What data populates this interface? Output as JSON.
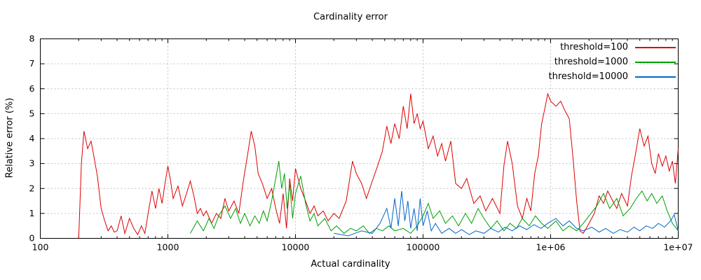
{
  "chart_data": {
    "type": "line",
    "title": "Cardinality error",
    "xlabel": "Actual cardinality",
    "ylabel": "Relative error (%)",
    "x_scale": "log10",
    "xlim": [
      100,
      10000000
    ],
    "ylim": [
      0,
      8
    ],
    "grid": true,
    "grid_color": "#c0c0c0",
    "legend_position": "top-right-inside",
    "xtick_labels": [
      "100",
      "1000",
      "10000",
      "100000",
      "1e+06",
      "1e+07"
    ],
    "ytick_labels": [
      "0",
      "1",
      "2",
      "3",
      "4",
      "5",
      "6",
      "7",
      "8"
    ],
    "series": [
      {
        "name": "threshold=100",
        "color": "#dd0000",
        "points": [
          [
            200,
            0.0
          ],
          [
            210,
            3.0
          ],
          [
            220,
            4.3
          ],
          [
            235,
            3.6
          ],
          [
            250,
            3.9
          ],
          [
            265,
            3.2
          ],
          [
            280,
            2.5
          ],
          [
            300,
            1.2
          ],
          [
            320,
            0.7
          ],
          [
            340,
            0.3
          ],
          [
            360,
            0.5
          ],
          [
            380,
            0.25
          ],
          [
            400,
            0.3
          ],
          [
            430,
            0.9
          ],
          [
            460,
            0.2
          ],
          [
            500,
            0.8
          ],
          [
            540,
            0.4
          ],
          [
            580,
            0.15
          ],
          [
            620,
            0.5
          ],
          [
            660,
            0.2
          ],
          [
            700,
            1.0
          ],
          [
            750,
            1.9
          ],
          [
            800,
            1.2
          ],
          [
            850,
            2.0
          ],
          [
            900,
            1.4
          ],
          [
            950,
            2.2
          ],
          [
            1000,
            2.9
          ],
          [
            1050,
            2.3
          ],
          [
            1100,
            1.6
          ],
          [
            1200,
            2.1
          ],
          [
            1300,
            1.3
          ],
          [
            1400,
            1.8
          ],
          [
            1500,
            2.3
          ],
          [
            1600,
            1.7
          ],
          [
            1700,
            1.0
          ],
          [
            1800,
            1.2
          ],
          [
            1900,
            0.9
          ],
          [
            2000,
            1.1
          ],
          [
            2200,
            0.6
          ],
          [
            2400,
            1.0
          ],
          [
            2600,
            0.8
          ],
          [
            2800,
            1.6
          ],
          [
            3000,
            1.1
          ],
          [
            3300,
            1.5
          ],
          [
            3600,
            1.0
          ],
          [
            3900,
            2.3
          ],
          [
            4200,
            3.3
          ],
          [
            4500,
            4.3
          ],
          [
            4800,
            3.7
          ],
          [
            5100,
            2.6
          ],
          [
            5500,
            2.2
          ],
          [
            6000,
            1.6
          ],
          [
            6500,
            2.0
          ],
          [
            7000,
            1.2
          ],
          [
            7500,
            0.6
          ],
          [
            8000,
            1.8
          ],
          [
            8500,
            0.4
          ],
          [
            9000,
            2.4
          ],
          [
            9500,
            1.5
          ],
          [
            10000,
            2.8
          ],
          [
            11000,
            2.0
          ],
          [
            12000,
            1.5
          ],
          [
            13000,
            1.0
          ],
          [
            14000,
            1.3
          ],
          [
            15000,
            0.9
          ],
          [
            16500,
            1.1
          ],
          [
            18000,
            0.7
          ],
          [
            20000,
            1.0
          ],
          [
            22000,
            0.8
          ],
          [
            25000,
            1.5
          ],
          [
            28000,
            3.1
          ],
          [
            30000,
            2.6
          ],
          [
            33000,
            2.2
          ],
          [
            36000,
            1.6
          ],
          [
            40000,
            2.3
          ],
          [
            44000,
            2.9
          ],
          [
            48000,
            3.5
          ],
          [
            52000,
            4.5
          ],
          [
            56000,
            3.8
          ],
          [
            60000,
            4.6
          ],
          [
            65000,
            4.0
          ],
          [
            70000,
            5.3
          ],
          [
            75000,
            4.4
          ],
          [
            80000,
            5.8
          ],
          [
            85000,
            4.6
          ],
          [
            90000,
            5.0
          ],
          [
            95000,
            4.4
          ],
          [
            100000,
            4.7
          ],
          [
            110000,
            3.6
          ],
          [
            120000,
            4.1
          ],
          [
            130000,
            3.3
          ],
          [
            140000,
            3.8
          ],
          [
            150000,
            3.1
          ],
          [
            165000,
            3.9
          ],
          [
            180000,
            2.2
          ],
          [
            200000,
            2.0
          ],
          [
            220000,
            2.4
          ],
          [
            250000,
            1.4
          ],
          [
            280000,
            1.7
          ],
          [
            310000,
            1.1
          ],
          [
            350000,
            1.6
          ],
          [
            400000,
            1.0
          ],
          [
            430000,
            2.9
          ],
          [
            460000,
            3.9
          ],
          [
            500000,
            3.0
          ],
          [
            550000,
            1.3
          ],
          [
            600000,
            0.8
          ],
          [
            650000,
            1.6
          ],
          [
            700000,
            1.1
          ],
          [
            750000,
            2.6
          ],
          [
            800000,
            3.3
          ],
          [
            850000,
            4.6
          ],
          [
            900000,
            5.2
          ],
          [
            950000,
            5.8
          ],
          [
            1000000,
            5.5
          ],
          [
            1100000,
            5.3
          ],
          [
            1200000,
            5.5
          ],
          [
            1300000,
            5.1
          ],
          [
            1400000,
            4.8
          ],
          [
            1500000,
            3.2
          ],
          [
            1600000,
            1.5
          ],
          [
            1700000,
            0.3
          ],
          [
            1800000,
            0.2
          ],
          [
            2000000,
            0.6
          ],
          [
            2200000,
            1.0
          ],
          [
            2400000,
            1.7
          ],
          [
            2600000,
            1.4
          ],
          [
            2800000,
            1.9
          ],
          [
            3000000,
            1.6
          ],
          [
            3300000,
            1.2
          ],
          [
            3600000,
            1.8
          ],
          [
            4000000,
            1.3
          ],
          [
            4300000,
            2.5
          ],
          [
            4600000,
            3.3
          ],
          [
            5000000,
            4.4
          ],
          [
            5400000,
            3.7
          ],
          [
            5800000,
            4.1
          ],
          [
            6200000,
            3.0
          ],
          [
            6600000,
            2.6
          ],
          [
            7000000,
            3.4
          ],
          [
            7500000,
            2.9
          ],
          [
            8000000,
            3.3
          ],
          [
            8500000,
            2.7
          ],
          [
            9000000,
            3.1
          ],
          [
            9500000,
            2.2
          ],
          [
            10000000,
            3.6
          ]
        ]
      },
      {
        "name": "threshold=1000",
        "color": "#00a000",
        "points": [
          [
            1500,
            0.2
          ],
          [
            1700,
            0.7
          ],
          [
            1900,
            0.3
          ],
          [
            2100,
            0.8
          ],
          [
            2300,
            0.4
          ],
          [
            2500,
            0.9
          ],
          [
            2800,
            1.3
          ],
          [
            3100,
            0.8
          ],
          [
            3400,
            1.2
          ],
          [
            3700,
            0.6
          ],
          [
            4000,
            1.0
          ],
          [
            4400,
            0.5
          ],
          [
            4800,
            0.9
          ],
          [
            5200,
            0.6
          ],
          [
            5600,
            1.1
          ],
          [
            6000,
            0.7
          ],
          [
            6500,
            1.5
          ],
          [
            7000,
            2.4
          ],
          [
            7400,
            3.1
          ],
          [
            7800,
            2.0
          ],
          [
            8200,
            2.6
          ],
          [
            8600,
            1.2
          ],
          [
            9000,
            2.2
          ],
          [
            9500,
            0.8
          ],
          [
            10000,
            1.8
          ],
          [
            11000,
            2.5
          ],
          [
            12000,
            1.4
          ],
          [
            13000,
            0.7
          ],
          [
            14000,
            1.0
          ],
          [
            15000,
            0.5
          ],
          [
            17000,
            0.8
          ],
          [
            19000,
            0.3
          ],
          [
            21000,
            0.5
          ],
          [
            24000,
            0.2
          ],
          [
            27000,
            0.4
          ],
          [
            30000,
            0.3
          ],
          [
            34000,
            0.5
          ],
          [
            38000,
            0.2
          ],
          [
            43000,
            0.4
          ],
          [
            48000,
            0.3
          ],
          [
            54000,
            0.5
          ],
          [
            60000,
            0.3
          ],
          [
            70000,
            0.4
          ],
          [
            80000,
            0.2
          ],
          [
            90000,
            0.5
          ],
          [
            100000,
            0.9
          ],
          [
            110000,
            1.4
          ],
          [
            120000,
            0.8
          ],
          [
            135000,
            1.1
          ],
          [
            150000,
            0.6
          ],
          [
            170000,
            0.9
          ],
          [
            190000,
            0.5
          ],
          [
            215000,
            1.0
          ],
          [
            240000,
            0.6
          ],
          [
            270000,
            1.2
          ],
          [
            300000,
            0.8
          ],
          [
            340000,
            0.4
          ],
          [
            380000,
            0.7
          ],
          [
            430000,
            0.3
          ],
          [
            480000,
            0.6
          ],
          [
            540000,
            0.4
          ],
          [
            600000,
            0.8
          ],
          [
            680000,
            0.5
          ],
          [
            760000,
            0.9
          ],
          [
            850000,
            0.6
          ],
          [
            950000,
            0.4
          ],
          [
            1100000,
            0.7
          ],
          [
            1250000,
            0.3
          ],
          [
            1400000,
            0.5
          ],
          [
            1600000,
            0.3
          ],
          [
            1800000,
            0.6
          ],
          [
            2000000,
            0.9
          ],
          [
            2300000,
            1.3
          ],
          [
            2600000,
            1.8
          ],
          [
            2900000,
            1.2
          ],
          [
            3300000,
            1.6
          ],
          [
            3700000,
            0.9
          ],
          [
            4200000,
            1.2
          ],
          [
            4700000,
            1.6
          ],
          [
            5200000,
            1.9
          ],
          [
            5700000,
            1.5
          ],
          [
            6200000,
            1.8
          ],
          [
            6800000,
            1.4
          ],
          [
            7500000,
            1.7
          ],
          [
            8200000,
            1.1
          ],
          [
            9000000,
            0.6
          ],
          [
            10000000,
            0.3
          ]
        ]
      },
      {
        "name": "threshold=10000",
        "color": "#0066cc",
        "points": [
          [
            20000,
            0.2
          ],
          [
            26000,
            0.1
          ],
          [
            33000,
            0.3
          ],
          [
            40000,
            0.2
          ],
          [
            46000,
            0.6
          ],
          [
            52000,
            1.2
          ],
          [
            56000,
            0.4
          ],
          [
            60000,
            1.6
          ],
          [
            64000,
            0.5
          ],
          [
            68000,
            1.9
          ],
          [
            72000,
            0.7
          ],
          [
            76000,
            1.5
          ],
          [
            80000,
            0.4
          ],
          [
            85000,
            1.2
          ],
          [
            90000,
            0.3
          ],
          [
            95000,
            1.6
          ],
          [
            100000,
            0.5
          ],
          [
            108000,
            1.1
          ],
          [
            116000,
            0.3
          ],
          [
            125000,
            0.6
          ],
          [
            140000,
            0.2
          ],
          [
            160000,
            0.4
          ],
          [
            180000,
            0.2
          ],
          [
            200000,
            0.35
          ],
          [
            230000,
            0.15
          ],
          [
            260000,
            0.3
          ],
          [
            300000,
            0.2
          ],
          [
            340000,
            0.4
          ],
          [
            390000,
            0.25
          ],
          [
            440000,
            0.45
          ],
          [
            500000,
            0.3
          ],
          [
            570000,
            0.5
          ],
          [
            650000,
            0.35
          ],
          [
            740000,
            0.55
          ],
          [
            840000,
            0.4
          ],
          [
            950000,
            0.6
          ],
          [
            1100000,
            0.8
          ],
          [
            1250000,
            0.5
          ],
          [
            1400000,
            0.7
          ],
          [
            1600000,
            0.4
          ],
          [
            1800000,
            0.3
          ],
          [
            2100000,
            0.45
          ],
          [
            2400000,
            0.25
          ],
          [
            2700000,
            0.4
          ],
          [
            3100000,
            0.2
          ],
          [
            3500000,
            0.35
          ],
          [
            4000000,
            0.25
          ],
          [
            4500000,
            0.45
          ],
          [
            5000000,
            0.3
          ],
          [
            5600000,
            0.5
          ],
          [
            6300000,
            0.4
          ],
          [
            7000000,
            0.6
          ],
          [
            7800000,
            0.45
          ],
          [
            8700000,
            0.7
          ],
          [
            9300000,
            0.95
          ],
          [
            10000000,
            0.3
          ]
        ]
      }
    ]
  }
}
